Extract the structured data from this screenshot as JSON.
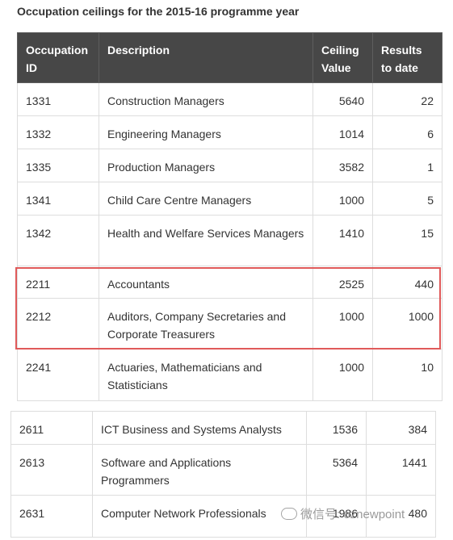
{
  "title": "Occupation ceilings for the 2015-16 programme year",
  "headers": [
    "Occupation ID",
    "Description",
    "Ceiling Value",
    "Results to date"
  ],
  "rows_top": [
    [
      "1331",
      "Construction Managers",
      "5640",
      "22"
    ],
    [
      "1332",
      "Engineering Managers",
      "1014",
      "6"
    ],
    [
      "1335",
      "Production Managers",
      "3582",
      "1"
    ],
    [
      "1341",
      "Child Care Centre Managers",
      "1000",
      "5"
    ],
    [
      "1342",
      "Health and Welfare Services Managers",
      "1410",
      "15"
    ],
    [
      "2211",
      "Accountants",
      "2525",
      "440"
    ],
    [
      "2212",
      "Auditors, Company Secretaries and Corporate Treasurers",
      "1000",
      "1000"
    ],
    [
      "2241",
      "Actuaries, Mathematicians and Statisticians",
      "1000",
      "10"
    ]
  ],
  "rows_bottom": [
    [
      "2611",
      "ICT Business and Systems Analysts",
      "1536",
      "384"
    ],
    [
      "2613",
      "Software and Applications Programmers",
      "5364",
      "1441"
    ],
    [
      "2631",
      "Computer Network Professionals",
      "1986",
      "480"
    ]
  ],
  "watermark": "微信号: oznewpoint",
  "colors": {
    "header_bg": "#474747",
    "highlight": "#e05a5a",
    "border": "#dddddd"
  }
}
